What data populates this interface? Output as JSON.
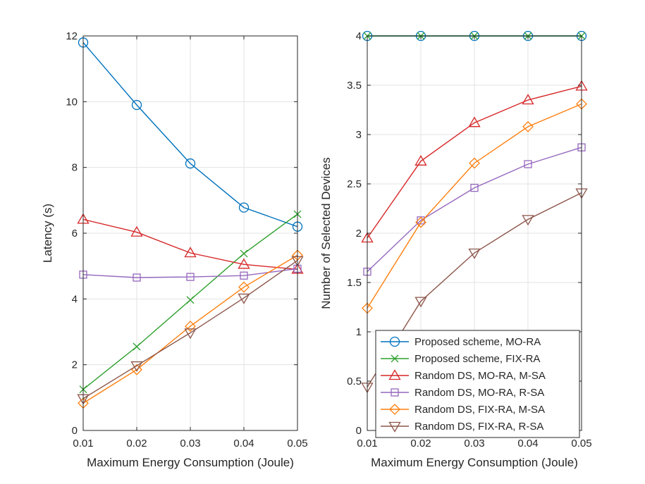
{
  "chart_data": [
    {
      "type": "line",
      "title": "",
      "xlabel": "Maximum Energy Consumption (Joule)",
      "ylabel": "Latency (s)",
      "x": [
        0.01,
        0.02,
        0.03,
        0.04,
        0.05
      ],
      "xticks": [
        "0.01",
        "0.02",
        "0.03",
        "0.04",
        "0.05"
      ],
      "yticks": [
        "0",
        "2",
        "4",
        "6",
        "8",
        "10",
        "12"
      ],
      "xlim": [
        0.01,
        0.05
      ],
      "ylim": [
        0,
        12
      ],
      "grid": true,
      "series": [
        {
          "name": "Proposed scheme, MO-RA",
          "color": "#0072BD",
          "marker": "circle",
          "values": [
            11.8,
            9.9,
            8.12,
            6.78,
            6.2
          ]
        },
        {
          "name": "Proposed scheme, FIX-RA",
          "color": "#2CA02C",
          "marker": "x",
          "values": [
            1.25,
            2.55,
            3.97,
            5.38,
            6.58
          ]
        },
        {
          "name": "Random DS, MO-RA, M-SA",
          "color": "#D62728",
          "marker": "triangle-up",
          "values": [
            6.42,
            6.03,
            5.4,
            5.05,
            4.9
          ]
        },
        {
          "name": "Random DS, MO-RA, R-SA",
          "color": "#9467BD",
          "marker": "square",
          "values": [
            4.74,
            4.65,
            4.67,
            4.71,
            4.92
          ]
        },
        {
          "name": "Random DS, FIX-RA, M-SA",
          "color": "#FF7F0E",
          "marker": "diamond",
          "values": [
            0.83,
            1.85,
            3.17,
            4.36,
            5.33
          ]
        },
        {
          "name": "Random DS, FIX-RA, R-SA",
          "color": "#8C564B",
          "marker": "triangle-down",
          "values": [
            0.97,
            1.97,
            2.97,
            4.03,
            5.17
          ]
        }
      ]
    },
    {
      "type": "line",
      "title": "",
      "xlabel": "Maximum Energy Consumption (Joule)",
      "ylabel": "Number of Selected Devices",
      "x": [
        0.01,
        0.02,
        0.03,
        0.04,
        0.05
      ],
      "xticks": [
        "0.01",
        "0.02",
        "0.03",
        "0.04",
        "0.05"
      ],
      "yticks": [
        "0",
        "0.5",
        "1",
        "1.5",
        "2",
        "2.5",
        "3",
        "3.5",
        "4"
      ],
      "xlim": [
        0.01,
        0.05
      ],
      "ylim": [
        0,
        4
      ],
      "grid": true,
      "legend_position": "bottom-right",
      "series": [
        {
          "name": "Proposed scheme, MO-RA",
          "color": "#0072BD",
          "marker": "circle",
          "values": [
            4,
            4,
            4,
            4,
            4
          ]
        },
        {
          "name": "Proposed scheme, FIX-RA",
          "color": "#2CA02C",
          "marker": "x",
          "values": [
            4,
            4,
            4,
            4,
            4
          ]
        },
        {
          "name": "Random DS, MO-RA, M-SA",
          "color": "#D62728",
          "marker": "triangle-up",
          "values": [
            1.95,
            2.73,
            3.12,
            3.35,
            3.49
          ]
        },
        {
          "name": "Random DS, MO-RA, R-SA",
          "color": "#9467BD",
          "marker": "square",
          "values": [
            1.61,
            2.13,
            2.46,
            2.7,
            2.87
          ]
        },
        {
          "name": "Random DS, FIX-RA, M-SA",
          "color": "#FF7F0E",
          "marker": "diamond",
          "values": [
            1.24,
            2.11,
            2.71,
            3.08,
            3.31
          ]
        },
        {
          "name": "Random DS, FIX-RA, R-SA",
          "color": "#8C564B",
          "marker": "triangle-down",
          "values": [
            0.44,
            1.31,
            1.8,
            2.14,
            2.41
          ]
        }
      ]
    }
  ]
}
